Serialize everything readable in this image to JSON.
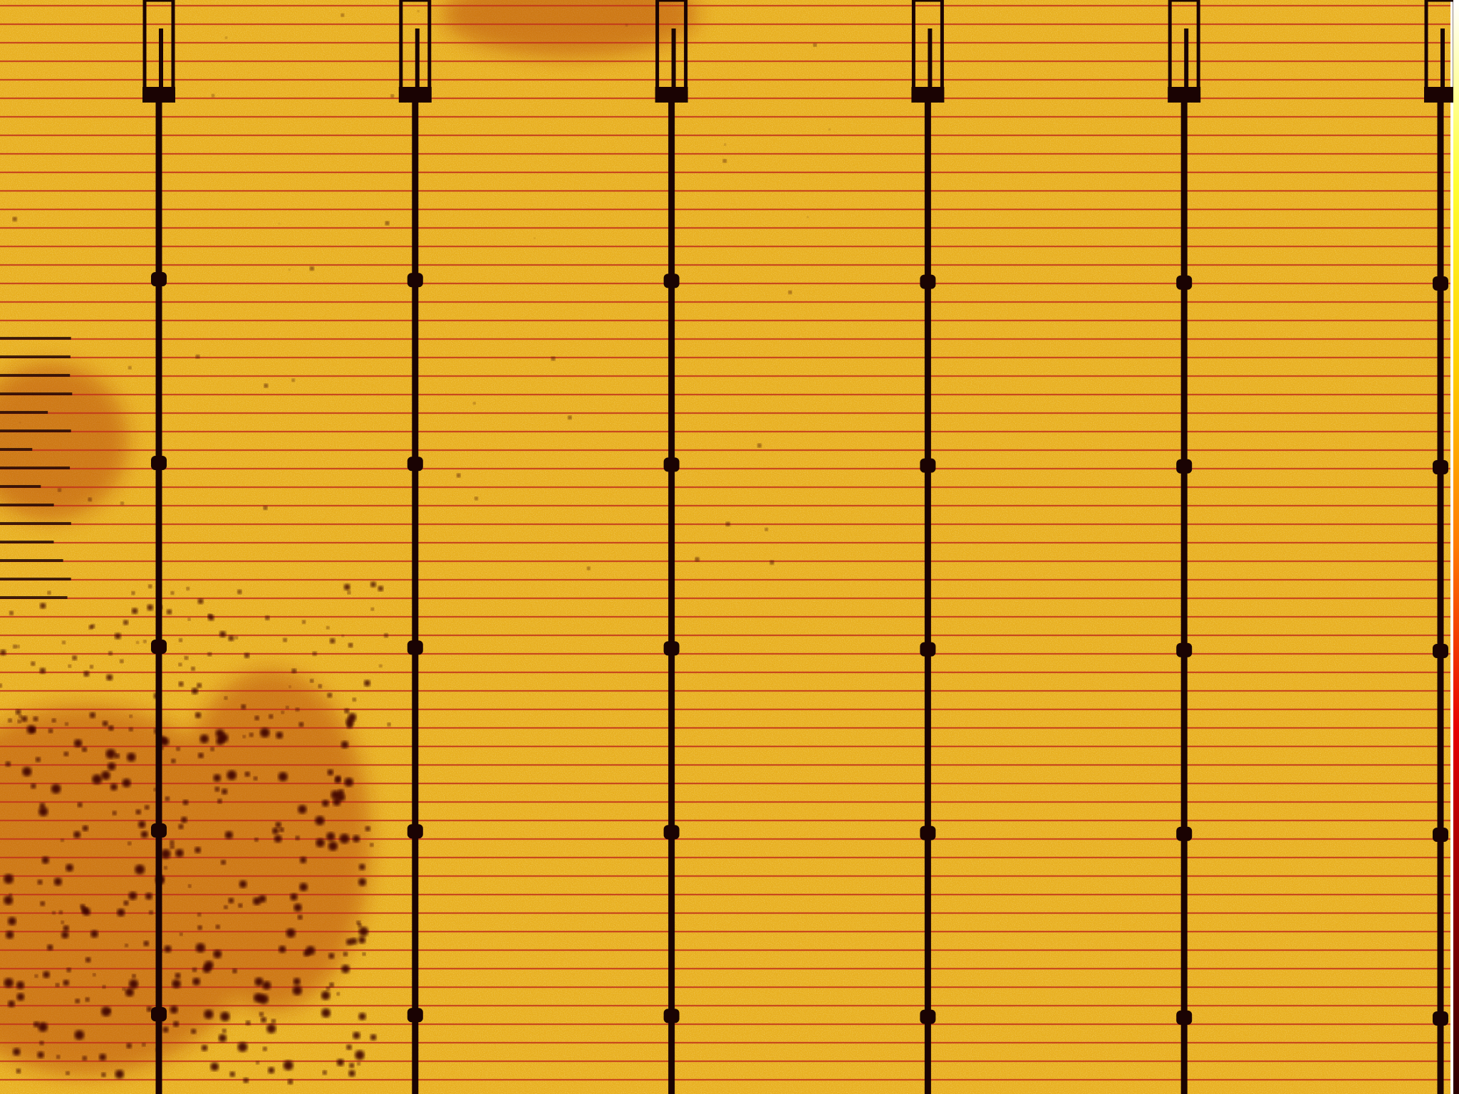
{
  "image": {
    "kind": "electroluminescence-solar-cell",
    "colormap": [
      "#2a0000",
      "#8b0000",
      "#e60000",
      "#ff7a00",
      "#ffd000",
      "#ffff33",
      "#ffffff"
    ],
    "background_color": "#ffffff",
    "cell_fill_color": "#e8b020",
    "finger_color": "#c2361c",
    "busbar_color": "#1a0303",
    "defect_color": "#3a0500",
    "busbar_count": 6,
    "busbar_pad_rows": 5
  }
}
